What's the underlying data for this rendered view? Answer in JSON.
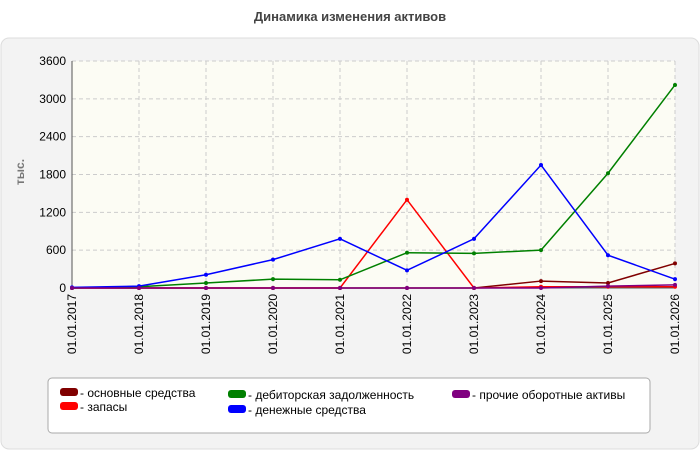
{
  "chart_data": {
    "type": "line",
    "title": "Динамика изменения активов",
    "y_label": "тыс.",
    "categories": [
      "01.01.2017",
      "01.01.2018",
      "01.01.2019",
      "01.01.2020",
      "01.01.2021",
      "01.01.2022",
      "01.01.2023",
      "01.01.2024",
      "01.01.2025",
      "01.01.2026"
    ],
    "series": [
      {
        "name": "- основные средства",
        "color": "#800000",
        "values": [
          0,
          0,
          0,
          0,
          0,
          0,
          0,
          110,
          80,
          390
        ]
      },
      {
        "name": "- запасы",
        "color": "#ff0000",
        "values": [
          0,
          0,
          0,
          0,
          0,
          1400,
          0,
          20,
          20,
          20
        ]
      },
      {
        "name": "- дебиторская задолженность",
        "color": "#008000",
        "values": [
          0,
          20,
          80,
          140,
          130,
          560,
          550,
          600,
          1820,
          3220
        ]
      },
      {
        "name": "- денежные средства",
        "color": "#0000ff",
        "values": [
          10,
          30,
          210,
          450,
          780,
          280,
          780,
          1950,
          520,
          140
        ]
      },
      {
        "name": "- прочие оборотные активы",
        "color": "#800080",
        "values": [
          0,
          0,
          0,
          0,
          0,
          0,
          0,
          0,
          30,
          50
        ]
      }
    ],
    "ylim": [
      0,
      3600
    ],
    "yticks": [
      0,
      600,
      1200,
      1800,
      2400,
      3000,
      3600
    ],
    "grid": true
  }
}
